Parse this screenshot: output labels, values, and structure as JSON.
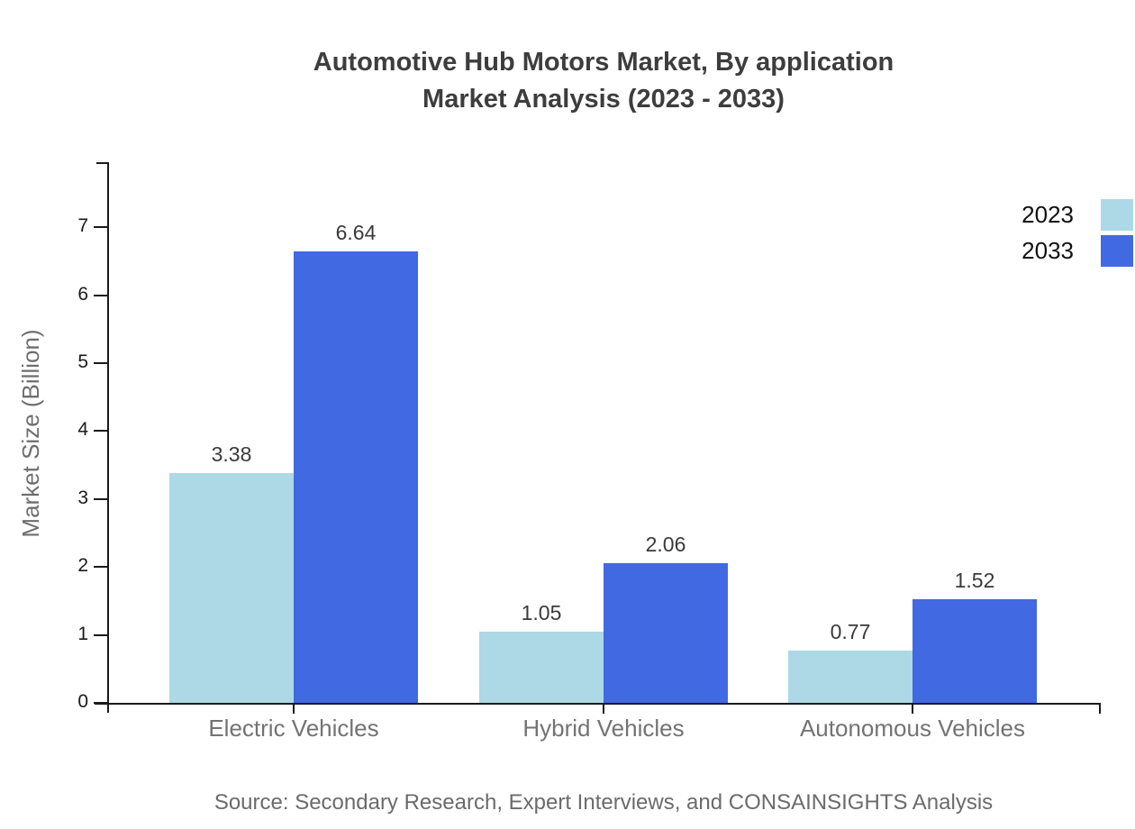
{
  "title": {
    "line1": "Automotive Hub Motors Market, By application",
    "line2": "Market Analysis (2023 - 2033)"
  },
  "ylabel": "Market Size (Billion)",
  "source": "Source: Secondary Research, Expert Interviews, and CONSAINSIGHTS Analysis",
  "colors": {
    "series_2023": "#ADD8E6",
    "series_2033": "#4169E1",
    "axis": "#1a1a1a",
    "title_text": "#3d3d3d",
    "value_label_text": "#3a3a3a",
    "category_text": "#737373",
    "muted_text": "#6e6e6e",
    "background": "#ffffff"
  },
  "chart_data": {
    "type": "bar",
    "title": "Automotive Hub Motors Market, By application Market Analysis (2023 - 2033)",
    "categories": [
      "Electric Vehicles",
      "Hybrid Vehicles",
      "Autonomous Vehicles"
    ],
    "series": [
      {
        "name": "2023",
        "color": "#ADD8E6",
        "values": [
          3.38,
          1.05,
          0.77
        ]
      },
      {
        "name": "2033",
        "color": "#4169E1",
        "values": [
          6.64,
          2.06,
          1.52
        ]
      }
    ],
    "xlabel": "",
    "ylabel": "Market Size (Billion)",
    "ylim": [
      0,
      8
    ],
    "yticks": [
      0,
      1,
      2,
      3,
      4,
      5,
      6,
      7
    ],
    "grid": false,
    "legend_position": "top-right",
    "value_labels": true
  }
}
